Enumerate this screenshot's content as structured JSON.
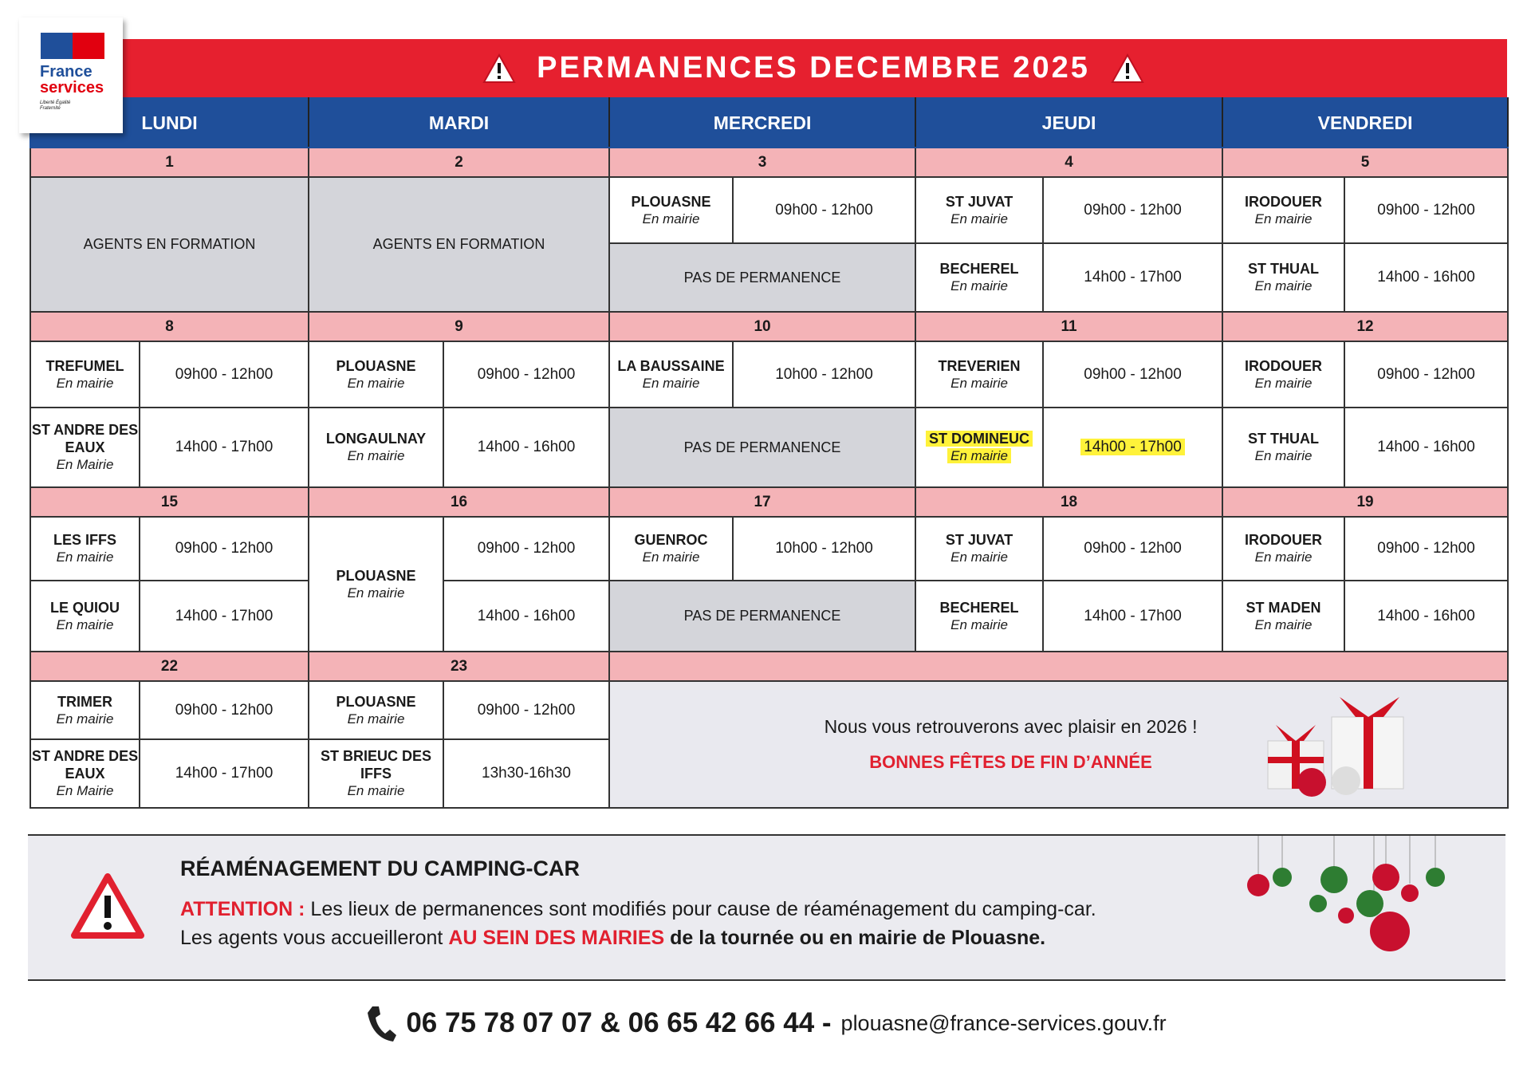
{
  "logo": {
    "line1": "France",
    "line2": "services",
    "motto": "Liberté Égalité Fraternité"
  },
  "title": "PERMANENCES DECEMBRE 2025",
  "days": [
    "LUNDI",
    "MARDI",
    "MERCREDI",
    "JEUDI",
    "VENDREDI"
  ],
  "colors": {
    "red": "#e6202f",
    "blue": "#1f4f9a",
    "pink": "#f4b3b7",
    "gray": "#d4d5da",
    "highlight": "#fff23a"
  },
  "weeks": [
    {
      "days": [
        {
          "date": "1",
          "type": "full",
          "text": "AGENTS EN FORMATION"
        },
        {
          "date": "2",
          "type": "full",
          "text": "AGENTS EN FORMATION"
        },
        {
          "date": "3",
          "type": "slots",
          "slots": [
            {
              "place": "PLOUASNE",
              "sub": "En mairie",
              "time": "09h00 - 12h00"
            },
            {
              "closed": "PAS DE PERMANENCE"
            }
          ]
        },
        {
          "date": "4",
          "type": "slots",
          "slots": [
            {
              "place": "ST JUVAT",
              "sub": "En mairie",
              "time": "09h00 - 12h00"
            },
            {
              "place": "BECHEREL",
              "sub": "En mairie",
              "time": "14h00 - 17h00"
            }
          ]
        },
        {
          "date": "5",
          "type": "slots",
          "slots": [
            {
              "place": "IRODOUER",
              "sub": "En mairie",
              "time": "09h00 - 12h00"
            },
            {
              "place": "ST THUAL",
              "sub": "En mairie",
              "time": "14h00 - 16h00"
            }
          ]
        }
      ]
    },
    {
      "days": [
        {
          "date": "8",
          "type": "slots",
          "slots": [
            {
              "place": "TREFUMEL",
              "sub": "En mairie",
              "time": "09h00 - 12h00"
            },
            {
              "place": "ST ANDRE DES EAUX",
              "sub": "En Mairie",
              "time": "14h00 - 17h00"
            }
          ]
        },
        {
          "date": "9",
          "type": "slots",
          "slots": [
            {
              "place": "PLOUASNE",
              "sub": "En mairie",
              "time": "09h00 - 12h00"
            },
            {
              "place": "LONGAULNAY",
              "sub": "En mairie",
              "time": "14h00 - 16h00"
            }
          ]
        },
        {
          "date": "10",
          "type": "slots",
          "slots": [
            {
              "place": "LA BAUSSAINE",
              "sub": "En mairie",
              "time": "10h00 - 12h00"
            },
            {
              "closed": "PAS DE PERMANENCE"
            }
          ]
        },
        {
          "date": "11",
          "type": "slots",
          "slots": [
            {
              "place": "TREVERIEN",
              "sub": "En mairie",
              "time": "09h00 - 12h00"
            },
            {
              "place": "ST DOMINEUC",
              "sub": "En mairie",
              "time": "14h00 - 17h00",
              "highlight": true
            }
          ]
        },
        {
          "date": "12",
          "type": "slots",
          "slots": [
            {
              "place": "IRODOUER",
              "sub": "En mairie",
              "time": "09h00 - 12h00"
            },
            {
              "place": "ST THUAL",
              "sub": "En mairie",
              "time": "14h00 - 16h00"
            }
          ]
        }
      ]
    },
    {
      "days": [
        {
          "date": "15",
          "type": "slots",
          "slots": [
            {
              "place": "LES IFFS",
              "sub": "En mairie",
              "time": "09h00 - 12h00"
            },
            {
              "place": "LE QUIOU",
              "sub": "En mairie",
              "time": "14h00 - 17h00"
            }
          ]
        },
        {
          "date": "16",
          "type": "merged",
          "place": "PLOUASNE",
          "sub": "En mairie",
          "times": [
            "09h00 - 12h00",
            "14h00 - 16h00"
          ]
        },
        {
          "date": "17",
          "type": "slots",
          "slots": [
            {
              "place": "GUENROC",
              "sub": "En mairie",
              "time": "10h00 - 12h00"
            },
            {
              "closed": "PAS DE PERMANENCE"
            }
          ]
        },
        {
          "date": "18",
          "type": "slots",
          "slots": [
            {
              "place": "ST JUVAT",
              "sub": "En mairie",
              "time": "09h00 - 12h00"
            },
            {
              "place": "BECHEREL",
              "sub": "En mairie",
              "time": "14h00 - 17h00"
            }
          ]
        },
        {
          "date": "19",
          "type": "slots",
          "slots": [
            {
              "place": "IRODOUER",
              "sub": "En mairie",
              "time": "09h00 - 12h00"
            },
            {
              "place": "ST MADEN",
              "sub": "En mairie",
              "time": "14h00 - 16h00"
            }
          ]
        }
      ]
    },
    {
      "days": [
        {
          "date": "22",
          "type": "slots",
          "slots": [
            {
              "place": "TRIMER",
              "sub": "En mairie",
              "time": "09h00 - 12h00"
            },
            {
              "place": "ST ANDRE DES EAUX",
              "sub": "En Mairie",
              "time": "14h00 - 17h00"
            }
          ]
        },
        {
          "date": "23",
          "type": "slots",
          "slots": [
            {
              "place": "PLOUASNE",
              "sub": "En mairie",
              "time": "09h00 - 12h00"
            },
            {
              "place": "ST BRIEUC DES IFFS",
              "sub": "En mairie",
              "time": "13h30-16h30"
            }
          ]
        },
        {
          "type": "message"
        }
      ]
    }
  ],
  "message": {
    "line1": "Nous vous retrouverons avec plaisir en 2026 !",
    "line2": "BONNES FÊTES DE FIN D’ANNÉE"
  },
  "notice": {
    "title": "RÉAMÉNAGEMENT DU CAMPING-CAR",
    "attention": "ATTENTION :",
    "line1": " Les lieux de permanences sont modifiés pour cause de réaménagement du camping-car.",
    "line2a": "Les agents vous accueilleront ",
    "line2b": "AU SEIN DES MAIRIES",
    "line2c": " de la tournée ou en mairie de Plouasne."
  },
  "footer": {
    "phone": "06 75 78 07 07 & 06 65 42 66 44 -",
    "email": "plouasne@france-services.gouv.fr",
    "icon": "phone-icon"
  }
}
